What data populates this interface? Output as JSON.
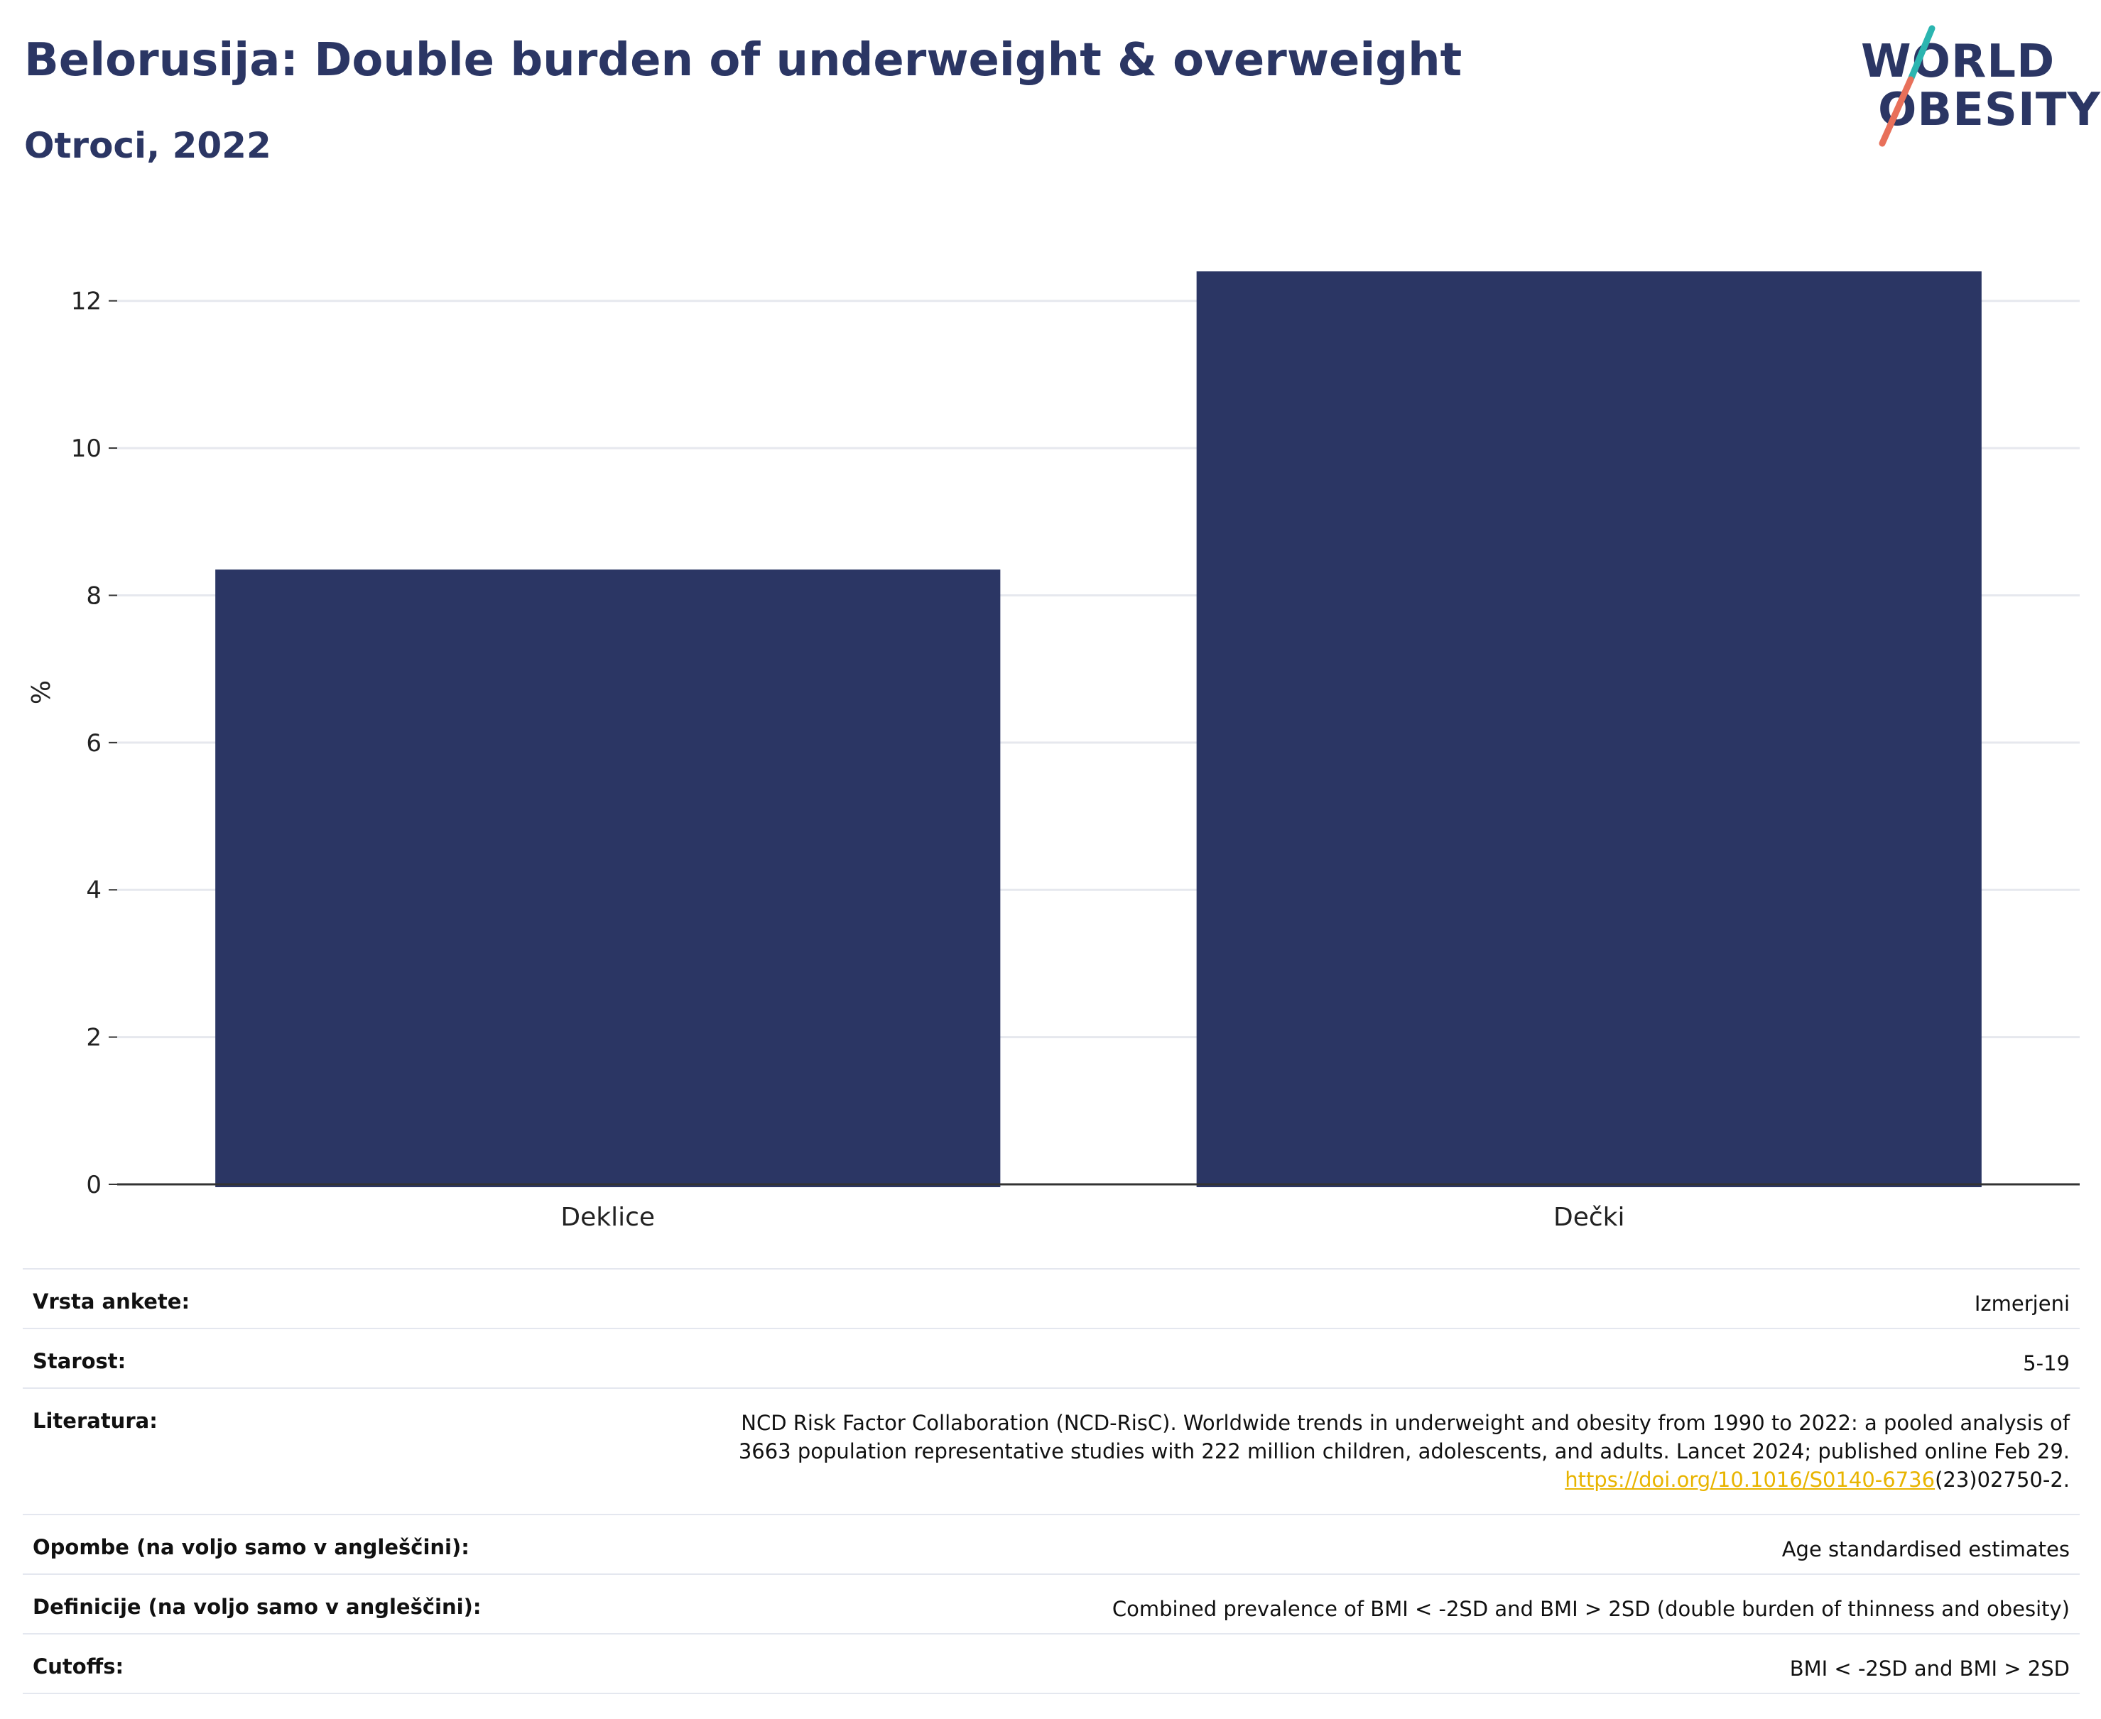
{
  "title": "Belorusija: Double burden of underweight & overweight",
  "subtitle": "Otroci, 2022",
  "logo": {
    "line1": "WORLD",
    "line2": "OBESITY"
  },
  "colors": {
    "bar": "#2b3664",
    "grid": "#e6e8ee",
    "axis": "#333333",
    "link": "#e8b400"
  },
  "chart_data": {
    "type": "bar",
    "categories": [
      "Deklice",
      "Dečki"
    ],
    "values": [
      8.35,
      12.4
    ],
    "ylabel": "%",
    "xlabel": "",
    "ylim": [
      0,
      13
    ],
    "yticks": [
      0,
      2,
      4,
      6,
      8,
      10,
      12
    ],
    "grid": true
  },
  "info": {
    "survey_label": "Vrsta ankete:",
    "survey_value": "Izmerjeni",
    "age_label": "Starost:",
    "age_value": "5-19",
    "lit_label": "Literatura:",
    "lit_line1": "NCD Risk Factor Collaboration (NCD-RisC). Worldwide trends in underweight and obesity from 1990 to 2022: a pooled analysis of",
    "lit_line2": "3663 population representative studies with 222 million children, adolescents, and adults. Lancet 2024; published online Feb 29.",
    "lit_link": "https://doi.org/10.1016/S0140-6736",
    "lit_tail": "(23)02750-2.",
    "notes_label": "Opombe (na voljo samo v angleščini):",
    "notes_value": "Age standardised estimates",
    "def_label": "Definicije (na voljo samo v angleščini):",
    "def_value": "Combined prevalence of BMI < -2SD and BMI > 2SD (double burden of thinness and obesity)",
    "cutoffs_label": "Cutoffs:",
    "cutoffs_value": "BMI < -2SD and BMI > 2SD"
  }
}
